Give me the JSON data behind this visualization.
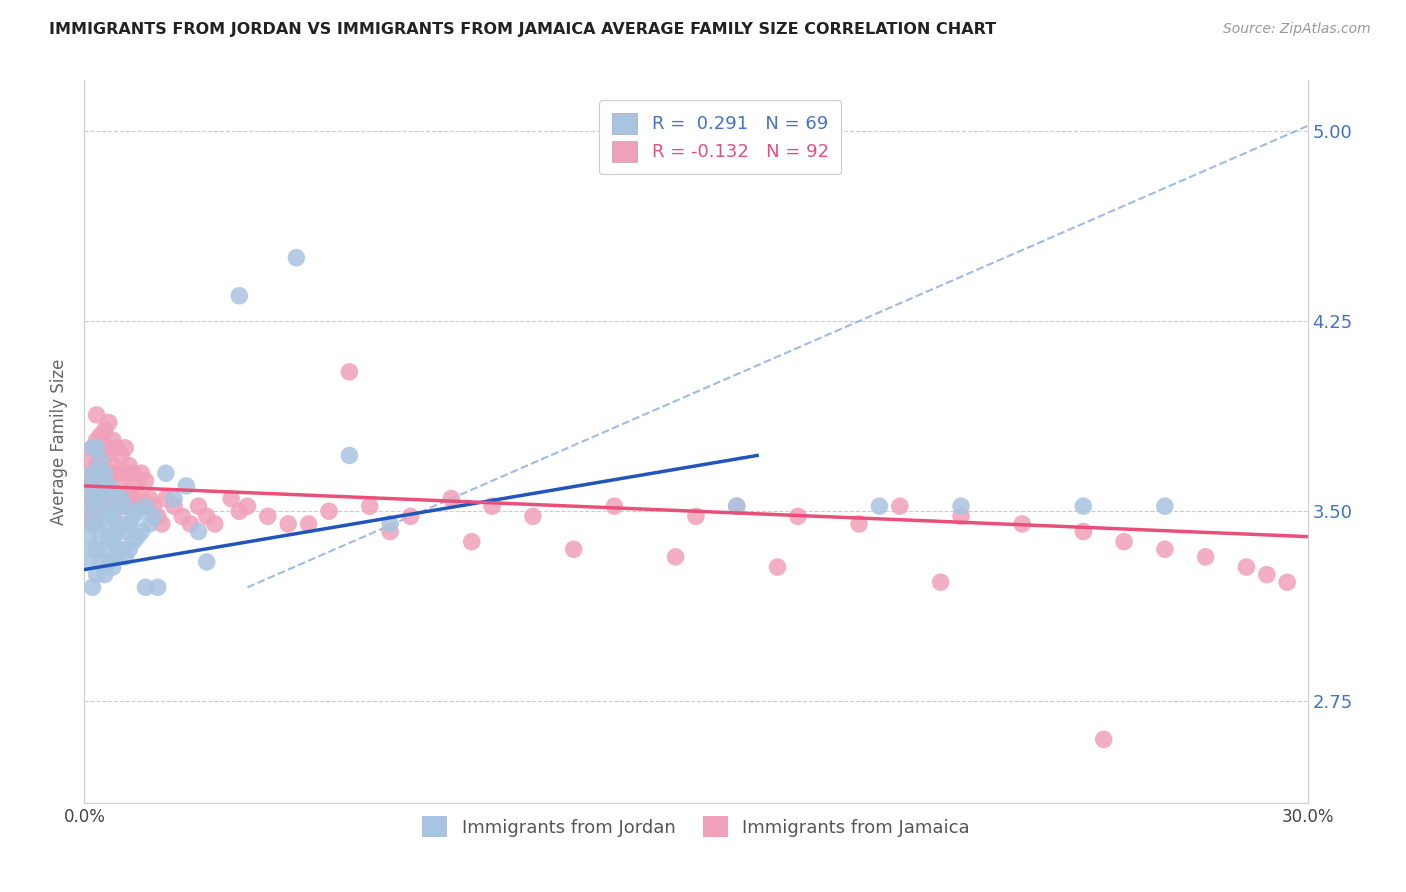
{
  "title": "IMMIGRANTS FROM JORDAN VS IMMIGRANTS FROM JAMAICA AVERAGE FAMILY SIZE CORRELATION CHART",
  "source": "Source: ZipAtlas.com",
  "ylabel": "Average Family Size",
  "xlim": [
    0.0,
    0.3
  ],
  "ylim": [
    2.35,
    5.2
  ],
  "yticks": [
    2.75,
    3.5,
    4.25,
    5.0
  ],
  "xticks": [
    0.0,
    0.05,
    0.1,
    0.15,
    0.2,
    0.25,
    0.3
  ],
  "xticklabels": [
    "0.0%",
    "",
    "",
    "",
    "",
    "",
    "30.0%"
  ],
  "yticklabels_right": [
    "2.75",
    "3.50",
    "4.25",
    "5.00"
  ],
  "jordan_color": "#a8c4e0",
  "jamaica_color": "#f0a0b8",
  "jordan_line_color": "#2255bb",
  "jamaica_line_color": "#e8507a",
  "dashed_line_color": "#88aadd",
  "jordan_R": 0.291,
  "jordan_N": 69,
  "jamaica_R": -0.132,
  "jamaica_N": 92,
  "jordan_line_x0": 0.0,
  "jordan_line_y0": 3.27,
  "jordan_line_x1": 0.165,
  "jordan_line_y1": 3.72,
  "jamaica_line_x0": 0.0,
  "jamaica_line_y0": 3.6,
  "jamaica_line_x1": 0.3,
  "jamaica_line_y1": 3.4,
  "dash_line_x0": 0.04,
  "dash_line_y0": 3.2,
  "dash_line_x1": 0.3,
  "dash_line_y1": 5.02,
  "jordan_scatter_x": [
    0.001,
    0.001,
    0.001,
    0.001,
    0.002,
    0.002,
    0.002,
    0.002,
    0.002,
    0.002,
    0.003,
    0.003,
    0.003,
    0.003,
    0.003,
    0.003,
    0.004,
    0.004,
    0.004,
    0.004,
    0.004,
    0.005,
    0.005,
    0.005,
    0.005,
    0.005,
    0.006,
    0.006,
    0.006,
    0.006,
    0.007,
    0.007,
    0.007,
    0.007,
    0.008,
    0.008,
    0.008,
    0.009,
    0.009,
    0.009,
    0.01,
    0.01,
    0.01,
    0.011,
    0.011,
    0.012,
    0.012,
    0.013,
    0.013,
    0.014,
    0.015,
    0.015,
    0.016,
    0.017,
    0.018,
    0.02,
    0.022,
    0.025,
    0.028,
    0.03,
    0.038,
    0.052,
    0.065,
    0.075,
    0.16,
    0.195,
    0.215,
    0.245,
    0.265
  ],
  "jordan_scatter_y": [
    3.3,
    3.4,
    3.5,
    3.6,
    3.2,
    3.35,
    3.45,
    3.55,
    3.65,
    3.75,
    3.25,
    3.35,
    3.45,
    3.55,
    3.65,
    3.75,
    3.3,
    3.4,
    3.5,
    3.6,
    3.7,
    3.25,
    3.35,
    3.45,
    3.55,
    3.65,
    3.3,
    3.4,
    3.5,
    3.6,
    3.28,
    3.38,
    3.48,
    3.58,
    3.32,
    3.42,
    3.52,
    3.35,
    3.45,
    3.55,
    3.32,
    3.42,
    3.52,
    3.35,
    3.45,
    3.38,
    3.48,
    3.4,
    3.5,
    3.42,
    3.2,
    3.52,
    3.45,
    3.48,
    3.2,
    3.65,
    3.55,
    3.6,
    3.42,
    3.3,
    4.35,
    4.5,
    3.72,
    3.45,
    3.52,
    3.52,
    3.52,
    3.52,
    3.52
  ],
  "jamaica_scatter_x": [
    0.001,
    0.001,
    0.001,
    0.002,
    0.002,
    0.002,
    0.002,
    0.003,
    0.003,
    0.003,
    0.003,
    0.003,
    0.004,
    0.004,
    0.004,
    0.004,
    0.005,
    0.005,
    0.005,
    0.005,
    0.006,
    0.006,
    0.006,
    0.006,
    0.007,
    0.007,
    0.007,
    0.008,
    0.008,
    0.008,
    0.009,
    0.009,
    0.009,
    0.01,
    0.01,
    0.01,
    0.011,
    0.011,
    0.012,
    0.012,
    0.013,
    0.013,
    0.014,
    0.014,
    0.015,
    0.015,
    0.016,
    0.017,
    0.018,
    0.019,
    0.02,
    0.022,
    0.024,
    0.026,
    0.028,
    0.03,
    0.032,
    0.036,
    0.04,
    0.045,
    0.05,
    0.06,
    0.065,
    0.07,
    0.08,
    0.09,
    0.1,
    0.11,
    0.13,
    0.15,
    0.16,
    0.175,
    0.19,
    0.2,
    0.215,
    0.23,
    0.245,
    0.255,
    0.265,
    0.275,
    0.285,
    0.29,
    0.295,
    0.038,
    0.055,
    0.075,
    0.095,
    0.12,
    0.145,
    0.17,
    0.21,
    0.25
  ],
  "jamaica_scatter_y": [
    3.5,
    3.6,
    3.7,
    3.45,
    3.55,
    3.65,
    3.75,
    3.48,
    3.58,
    3.68,
    3.78,
    3.88,
    3.5,
    3.6,
    3.7,
    3.8,
    3.52,
    3.62,
    3.72,
    3.82,
    3.55,
    3.65,
    3.75,
    3.85,
    3.58,
    3.68,
    3.78,
    3.55,
    3.65,
    3.75,
    3.52,
    3.62,
    3.72,
    3.55,
    3.65,
    3.75,
    3.58,
    3.68,
    3.55,
    3.65,
    3.52,
    3.62,
    3.55,
    3.65,
    3.52,
    3.62,
    3.55,
    3.52,
    3.48,
    3.45,
    3.55,
    3.52,
    3.48,
    3.45,
    3.52,
    3.48,
    3.45,
    3.55,
    3.52,
    3.48,
    3.45,
    3.5,
    4.05,
    3.52,
    3.48,
    3.55,
    3.52,
    3.48,
    3.52,
    3.48,
    3.52,
    3.48,
    3.45,
    3.52,
    3.48,
    3.45,
    3.42,
    3.38,
    3.35,
    3.32,
    3.28,
    3.25,
    3.22,
    3.5,
    3.45,
    3.42,
    3.38,
    3.35,
    3.32,
    3.28,
    3.22,
    2.6
  ]
}
